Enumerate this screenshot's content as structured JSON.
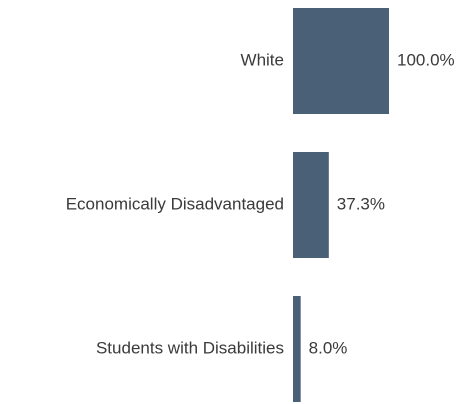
{
  "chart_data": {
    "type": "bar",
    "orientation": "horizontal",
    "categories": [
      "White",
      "Economically Disadvantaged",
      "Students with Disabilities"
    ],
    "values": [
      100.0,
      37.3,
      8.0
    ],
    "value_labels": [
      "100.0%",
      "37.3%",
      "8.0%"
    ],
    "xlim": [
      0,
      100
    ],
    "grid": false,
    "bar_color": "#4a6076",
    "title": "",
    "xlabel": "",
    "ylabel": ""
  }
}
